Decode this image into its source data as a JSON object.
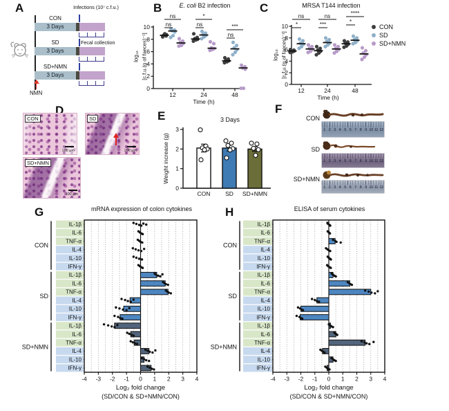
{
  "panel_labels": {
    "A": "A",
    "B": "B",
    "C": "C",
    "D": "D",
    "E": "E",
    "F": "F",
    "G": "G",
    "H": "H"
  },
  "legend": {
    "items": [
      {
        "label": "CON",
        "color": "#3e3e3e"
      },
      {
        "label": "SD",
        "color": "#8fb0c9"
      },
      {
        "label": "SD+NMN",
        "color": "#b79bc8"
      }
    ]
  },
  "panelA": {
    "infections": "Infections (10⁷ c.f.u.)",
    "fecal": "Fecal collection",
    "nmn": "NMN",
    "rows": [
      {
        "name": "CON",
        "duration": "3 Days"
      },
      {
        "name": "SD",
        "duration": "3 Days"
      },
      {
        "name": "SD+NMN",
        "duration": "3 Days"
      }
    ]
  },
  "panelD": {
    "images": [
      {
        "name": "CON",
        "scale": "100 μm"
      },
      {
        "name": "SD",
        "scale": "100 μm"
      },
      {
        "name": "SD+NMN",
        "scale": "100 μm"
      }
    ]
  },
  "panelF": {
    "rows": [
      "CON",
      "SD",
      "SD+NMN"
    ],
    "ruler_numbers": [
      "1",
      "2",
      "3",
      "4",
      "5",
      "6",
      "7",
      "8",
      "9",
      "10",
      "11",
      "12"
    ]
  },
  "chart_data": [
    {
      "id": "B",
      "type": "scatter",
      "title_italic": "E. coli",
      "title_rest": " B2 infection",
      "xlabel": "Time (h)",
      "ylabel_line1": "log₁₀",
      "ylabel_line2": "[c.f.u.(g of faeces)⁻¹]",
      "ylim": [
        0,
        10
      ],
      "yticks": [
        0,
        2,
        4,
        6,
        8,
        10
      ],
      "categories": [
        "12",
        "24",
        "48"
      ],
      "series": [
        {
          "name": "CON",
          "color": "#3e3e3e",
          "means": [
            8.65,
            8.05,
            4.5
          ],
          "points": [
            [
              8.4,
              8.55,
              8.65,
              8.75,
              8.9
            ],
            [
              8.9,
              8.3,
              8.1,
              8.0,
              7.9,
              7.7
            ],
            [
              5.0,
              4.8,
              4.6,
              4.5,
              4.35,
              4.2
            ]
          ]
        },
        {
          "name": "SD",
          "color": "#8fb0c9",
          "means": [
            9.35,
            8.7,
            6.45
          ],
          "points": [
            [
              9.7,
              9.5,
              9.4,
              9.2,
              8.6,
              8.3
            ],
            [
              9.3,
              9.0,
              8.8,
              8.6,
              8.4,
              8.1
            ],
            [
              7.5,
              7.0,
              6.6,
              6.3,
              5.9,
              5.5
            ]
          ]
        },
        {
          "name": "SD+NMN",
          "color": "#b79bc8",
          "means": [
            7.4,
            6.55,
            3.35
          ],
          "points": [
            [
              8.1,
              7.7,
              7.5,
              7.3,
              7.0,
              6.9
            ],
            [
              7.6,
              7.3,
              6.6,
              6.5,
              6.35,
              6.2
            ],
            [
              3.8,
              3.55,
              3.35,
              3.15,
              0.05,
              0.05
            ]
          ]
        }
      ],
      "significance": [
        {
          "upper": "ns",
          "lower": "ns"
        },
        {
          "upper": "*",
          "lower": "ns"
        },
        {
          "upper": "***",
          "lower": "ns"
        }
      ]
    },
    {
      "id": "C",
      "type": "scatter",
      "title": "MRSA T144 infection",
      "xlabel": "Time (h)",
      "ylabel_line1": "log₁₀",
      "ylabel_line2": "[c.f.u.(g of faeces)⁻¹]",
      "ylim": [
        0,
        10
      ],
      "yticks": [
        0,
        2,
        4,
        6,
        8,
        10
      ],
      "categories": [
        "12",
        "24",
        "48"
      ],
      "series": [
        {
          "name": "CON",
          "color": "#3e3e3e",
          "means": [
            5.75,
            5.8,
            7.0
          ],
          "points": [
            [
              6.0,
              5.9,
              5.8,
              5.75,
              5.6,
              5.5
            ],
            [
              6.5,
              6.2,
              5.9,
              5.7,
              5.4,
              5.1
            ],
            [
              7.5,
              7.3,
              7.1,
              6.9,
              6.6,
              6.4
            ]
          ]
        },
        {
          "name": "SD",
          "color": "#8fb0c9",
          "means": [
            7.0,
            7.2,
            7.6
          ],
          "points": [
            [
              7.8,
              7.5,
              7.1,
              6.9,
              6.5,
              6.2
            ],
            [
              8.0,
              7.7,
              7.4,
              7.1,
              6.8,
              6.5
            ],
            [
              8.3,
              8.0,
              7.7,
              7.5,
              7.2,
              7.0
            ]
          ]
        },
        {
          "name": "SD+NMN",
          "color": "#b79bc8",
          "means": [
            6.1,
            6.1,
            5.25
          ],
          "points": [
            [
              6.8,
              6.5,
              6.2,
              6.0,
              5.7,
              5.5
            ],
            [
              6.8,
              6.5,
              6.2,
              6.0,
              5.7,
              5.4
            ],
            [
              6.3,
              5.8,
              5.4,
              5.1,
              4.7,
              4.3
            ]
          ]
        }
      ],
      "significance": [
        {
          "upper": "ns",
          "lower": "*"
        },
        {
          "upper": "ns",
          "lower": "***"
        },
        {
          "upper": "****",
          "lower": "*"
        }
      ]
    },
    {
      "id": "E",
      "type": "bar",
      "title": "3 Days",
      "ylabel": "Weight increase (g)",
      "ylim": [
        0,
        3
      ],
      "yticks": [
        0,
        1,
        2,
        3
      ],
      "bars": [
        {
          "label": "CON",
          "value": 2.05,
          "err": 0.2,
          "color": "#ffffff",
          "points": [
            2.98,
            2.15,
            2.06,
            2.0,
            1.96,
            1.45
          ]
        },
        {
          "label": "SD",
          "value": 2.05,
          "err": 0.15,
          "color": "#3e7ab3",
          "points": [
            2.42,
            2.3,
            2.18,
            2.02,
            1.95,
            1.55
          ]
        },
        {
          "label": "SD+NMN",
          "value": 2.0,
          "err": 0.12,
          "color": "#6b6e38",
          "points": [
            2.3,
            2.26,
            2.04,
            1.97,
            1.68
          ]
        }
      ]
    },
    {
      "id": "G",
      "type": "hbar",
      "title": "mRNA expression of colon cytokines",
      "xlabel_line1": "Log₂ fold change",
      "xlabel_line2": "(SD/CON & SD+NMN/CON)",
      "xlim": [
        -4,
        4
      ],
      "xticks": [
        -4,
        -3,
        -2,
        -1,
        0,
        1,
        2,
        3,
        4
      ],
      "cytokines": [
        "IL-1β",
        "IL-6",
        "TNF-α",
        "IL-4",
        "IL-10",
        "IFN-γ"
      ],
      "cytokine_classes": [
        "pro",
        "pro",
        "pro",
        "anti",
        "anti",
        "anti"
      ],
      "label_bg": {
        "pro": "#d9e7c9",
        "anti": "#c7d9ee"
      },
      "groups": [
        {
          "name": "CON",
          "bar_color": "#4d86c0",
          "values": [
            0,
            0,
            0,
            0,
            0,
            0
          ],
          "points": [
            [
              -0.5,
              -0.3,
              -0.1,
              0.05,
              0.2,
              0.4
            ],
            [
              -0.15,
              -0.05,
              0.05,
              0.15
            ],
            [
              -0.2,
              -0.1,
              0,
              0.12
            ],
            [
              -0.55,
              -0.35,
              -0.15,
              0.05,
              0.25
            ],
            [
              -0.5,
              -0.3,
              -0.1,
              0.1
            ],
            [
              -0.15,
              -0.05,
              0.05,
              0.15
            ]
          ]
        },
        {
          "name": "SD",
          "bar_color": "#4d86c0",
          "values": [
            1.15,
            1.75,
            1.95,
            -0.75,
            -1.2,
            -1.45
          ],
          "points": [
            [
              1.0,
              1.1,
              1.25,
              1.4,
              1.55
            ],
            [
              1.6,
              1.7,
              1.8,
              1.95
            ],
            [
              1.8,
              1.9,
              2.0,
              2.15
            ],
            [
              -1.35,
              -1.1,
              -0.9,
              -0.7,
              -0.5
            ],
            [
              -1.75,
              -1.5,
              -1.25,
              -1.0,
              -0.8
            ],
            [
              -1.85,
              -1.6,
              -1.45,
              -1.3
            ]
          ]
        },
        {
          "name": "SD+NMN",
          "bar_color": "#51647b",
          "values": [
            -1.85,
            -0.7,
            -0.45,
            0.6,
            0.25,
            0.75
          ],
          "points": [
            [
              -2.6,
              -2.3,
              -2.05,
              -1.85,
              -1.65
            ],
            [
              -0.95,
              -0.8,
              -0.65,
              -0.5
            ],
            [
              -0.7,
              -0.55,
              -0.4,
              -0.25
            ],
            [
              0.35,
              0.5,
              0.65,
              0.85,
              1.05
            ],
            [
              0.1,
              0.25,
              0.4,
              0.6
            ],
            [
              0.5,
              0.65,
              0.8,
              0.95
            ]
          ]
        }
      ]
    },
    {
      "id": "H",
      "type": "hbar",
      "title": "ELISA of serum cytokines",
      "xlabel_line1": "Log₂ fold change",
      "xlabel_line2": "(SD/CON & SD+NMN/CON)",
      "xlim": [
        -4,
        4
      ],
      "xticks": [
        -4,
        -3,
        -2,
        -1,
        0,
        1,
        2,
        3,
        4
      ],
      "cytokines": [
        "IL-1β",
        "IL-6",
        "TNF-α",
        "IL-4",
        "IL-10",
        "IFN-γ"
      ],
      "cytokine_classes": [
        "pro",
        "pro",
        "pro",
        "anti",
        "anti",
        "anti"
      ],
      "label_bg": {
        "pro": "#d9e7c9",
        "anti": "#c7d9ee"
      },
      "groups": [
        {
          "name": "CON",
          "bar_color": "#4d86c0",
          "values": [
            0,
            0,
            0.45,
            0,
            0,
            0
          ],
          "points": [
            [
              -0.1,
              -0.05,
              0.05,
              0.1
            ],
            [
              -0.08,
              0,
              0.08
            ],
            [
              0.3,
              0.45,
              0.55,
              0.85
            ],
            [
              -0.2,
              -0.1,
              0,
              0.1
            ],
            [
              -0.08,
              0,
              0.08,
              0.15
            ],
            [
              -0.12,
              -0.04,
              0.06,
              0.14
            ]
          ]
        },
        {
          "name": "SD",
          "bar_color": "#4d86c0",
          "values": [
            0.3,
            1.5,
            3.0,
            -0.85,
            -2.0,
            -2.05
          ],
          "points": [
            [
              0.2,
              0.3,
              0.4,
              0.5
            ],
            [
              1.35,
              1.45,
              1.55,
              1.65
            ],
            [
              2.6,
              2.85,
              3.05,
              3.3,
              3.5
            ],
            [
              -1.2,
              -1.0,
              -0.85,
              -0.7
            ],
            [
              -2.2,
              -2.05,
              -1.95,
              -1.85
            ],
            [
              -2.3,
              -2.1,
              -2.0,
              -1.9
            ]
          ]
        },
        {
          "name": "SD+NMN",
          "bar_color": "#51647b",
          "values": [
            0.12,
            0.5,
            2.6,
            -0.45,
            0.3,
            -0.12
          ],
          "points": [
            [
              0,
              0.1,
              0.2,
              0.3
            ],
            [
              0.4,
              0.5,
              0.6
            ],
            [
              2.35,
              2.55,
              2.7,
              2.9,
              3.2
            ],
            [
              -0.6,
              -0.5,
              -0.4,
              -0.3
            ],
            [
              0.2,
              0.3,
              0.4,
              0.5
            ],
            [
              -0.25,
              -0.15,
              -0.05,
              0.05
            ]
          ]
        }
      ]
    }
  ]
}
